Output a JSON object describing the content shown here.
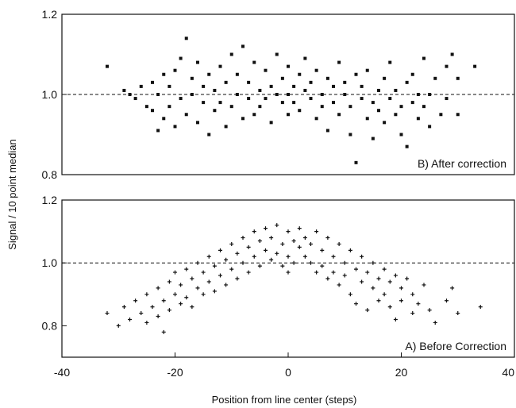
{
  "figure": {
    "ylabel": "Signal / 10 point median",
    "xlabel": "Position from line center (steps)",
    "x_ticks": [
      "-40",
      "-20",
      "0",
      "20",
      "40"
    ]
  },
  "chart_data": [
    {
      "type": "scatter",
      "panel_label": "B)  After correction",
      "marker": "square",
      "xlim": [
        -40,
        40
      ],
      "ylim": [
        0.8,
        1.2
      ],
      "y_ticks": [
        "0.8",
        "1.0",
        "1.2"
      ],
      "reference_line": {
        "y": 1.0,
        "style": "dashed"
      },
      "points": [
        [
          -32,
          1.07
        ],
        [
          -29,
          1.01
        ],
        [
          -28,
          1.0
        ],
        [
          -27,
          0.99
        ],
        [
          -26,
          1.02
        ],
        [
          -25,
          0.97
        ],
        [
          -24,
          1.03
        ],
        [
          -24,
          0.96
        ],
        [
          -23,
          0.91
        ],
        [
          -23,
          1.0
        ],
        [
          -22,
          1.05
        ],
        [
          -22,
          0.94
        ],
        [
          -21,
          0.97
        ],
        [
          -21,
          1.02
        ],
        [
          -20,
          0.92
        ],
        [
          -20,
          1.06
        ],
        [
          -19,
          0.99
        ],
        [
          -19,
          1.09
        ],
        [
          -18,
          1.14
        ],
        [
          -18,
          0.95
        ],
        [
          -17,
          1.0
        ],
        [
          -17,
          1.04
        ],
        [
          -16,
          0.93
        ],
        [
          -16,
          1.08
        ],
        [
          -15,
          0.98
        ],
        [
          -15,
          1.02
        ],
        [
          -14,
          1.05
        ],
        [
          -14,
          0.9
        ],
        [
          -13,
          1.01
        ],
        [
          -13,
          0.96
        ],
        [
          -12,
          1.07
        ],
        [
          -12,
          0.98
        ],
        [
          -11,
          1.03
        ],
        [
          -11,
          0.92
        ],
        [
          -10,
          1.1
        ],
        [
          -10,
          0.97
        ],
        [
          -9,
          1.0
        ],
        [
          -9,
          1.05
        ],
        [
          -8,
          0.94
        ],
        [
          -8,
          1.12
        ],
        [
          -7,
          0.99
        ],
        [
          -7,
          1.03
        ],
        [
          -6,
          1.08
        ],
        [
          -6,
          0.95
        ],
        [
          -5,
          1.01
        ],
        [
          -5,
          0.97
        ],
        [
          -4,
          1.06
        ],
        [
          -4,
          0.99
        ],
        [
          -3,
          1.02
        ],
        [
          -3,
          0.93
        ],
        [
          -2,
          1.1
        ],
        [
          -2,
          1.0
        ],
        [
          -1,
          0.98
        ],
        [
          -1,
          1.04
        ],
        [
          0,
          1.0
        ],
        [
          0,
          1.07
        ],
        [
          0,
          0.95
        ],
        [
          1,
          1.02
        ],
        [
          1,
          0.98
        ],
        [
          2,
          1.05
        ],
        [
          2,
          0.96
        ],
        [
          3,
          1.01
        ],
        [
          3,
          1.09
        ],
        [
          4,
          0.99
        ],
        [
          4,
          1.03
        ],
        [
          5,
          0.94
        ],
        [
          5,
          1.06
        ],
        [
          6,
          1.0
        ],
        [
          6,
          0.97
        ],
        [
          7,
          1.04
        ],
        [
          7,
          0.91
        ],
        [
          8,
          1.02
        ],
        [
          8,
          0.98
        ],
        [
          9,
          1.08
        ],
        [
          9,
          0.95
        ],
        [
          10,
          1.0
        ],
        [
          10,
          1.03
        ],
        [
          11,
          0.9
        ],
        [
          11,
          0.97
        ],
        [
          12,
          1.05
        ],
        [
          12,
          0.83
        ],
        [
          13,
          0.99
        ],
        [
          13,
          1.02
        ],
        [
          14,
          0.94
        ],
        [
          14,
          1.06
        ],
        [
          15,
          0.98
        ],
        [
          15,
          0.89
        ],
        [
          16,
          1.01
        ],
        [
          16,
          0.96
        ],
        [
          17,
          1.04
        ],
        [
          17,
          0.93
        ],
        [
          18,
          0.99
        ],
        [
          18,
          1.08
        ],
        [
          19,
          0.95
        ],
        [
          19,
          1.01
        ],
        [
          20,
          0.97
        ],
        [
          20,
          0.9
        ],
        [
          21,
          1.03
        ],
        [
          21,
          0.87
        ],
        [
          22,
          0.98
        ],
        [
          22,
          1.05
        ],
        [
          23,
          0.94
        ],
        [
          23,
          1.0
        ],
        [
          24,
          0.97
        ],
        [
          24,
          1.09
        ],
        [
          25,
          1.0
        ],
        [
          25,
          0.92
        ],
        [
          26,
          1.04
        ],
        [
          27,
          0.95
        ],
        [
          28,
          1.07
        ],
        [
          28,
          0.99
        ],
        [
          29,
          1.1
        ],
        [
          30,
          0.95
        ],
        [
          30,
          1.04
        ],
        [
          33,
          1.07
        ]
      ]
    },
    {
      "type": "scatter",
      "panel_label": "A) Before Correction",
      "marker": "plus",
      "xlim": [
        -40,
        40
      ],
      "ylim": [
        0.7,
        1.2
      ],
      "y_ticks": [
        "0.8",
        "1.0",
        "1.2"
      ],
      "reference_line": {
        "y": 1.0,
        "style": "dashed"
      },
      "points": [
        [
          -32,
          0.84
        ],
        [
          -30,
          0.8
        ],
        [
          -29,
          0.86
        ],
        [
          -28,
          0.82
        ],
        [
          -27,
          0.88
        ],
        [
          -26,
          0.84
        ],
        [
          -25,
          0.9
        ],
        [
          -25,
          0.81
        ],
        [
          -24,
          0.86
        ],
        [
          -23,
          0.92
        ],
        [
          -23,
          0.83
        ],
        [
          -22,
          0.88
        ],
        [
          -22,
          0.78
        ],
        [
          -21,
          0.94
        ],
        [
          -21,
          0.85
        ],
        [
          -20,
          0.9
        ],
        [
          -20,
          0.97
        ],
        [
          -19,
          0.87
        ],
        [
          -19,
          0.93
        ],
        [
          -18,
          0.98
        ],
        [
          -18,
          0.89
        ],
        [
          -17,
          0.95
        ],
        [
          -17,
          0.86
        ],
        [
          -16,
          1.0
        ],
        [
          -16,
          0.92
        ],
        [
          -15,
          0.97
        ],
        [
          -15,
          0.9
        ],
        [
          -14,
          1.02
        ],
        [
          -14,
          0.94
        ],
        [
          -13,
          0.99
        ],
        [
          -13,
          0.91
        ],
        [
          -12,
          1.04
        ],
        [
          -12,
          0.96
        ],
        [
          -11,
          1.01
        ],
        [
          -11,
          0.93
        ],
        [
          -10,
          1.06
        ],
        [
          -10,
          0.98
        ],
        [
          -9,
          1.03
        ],
        [
          -9,
          0.95
        ],
        [
          -8,
          1.08
        ],
        [
          -8,
          1.0
        ],
        [
          -7,
          1.05
        ],
        [
          -7,
          0.97
        ],
        [
          -6,
          1.1
        ],
        [
          -6,
          1.02
        ],
        [
          -5,
          1.07
        ],
        [
          -5,
          0.99
        ],
        [
          -4,
          1.04
        ],
        [
          -4,
          1.11
        ],
        [
          -3,
          1.01
        ],
        [
          -3,
          1.08
        ],
        [
          -2,
          1.12
        ],
        [
          -2,
          1.03
        ],
        [
          -1,
          1.06
        ],
        [
          -1,
          0.99
        ],
        [
          0,
          1.1
        ],
        [
          0,
          1.02
        ],
        [
          0,
          0.97
        ],
        [
          1,
          1.07
        ],
        [
          1,
          1.0
        ],
        [
          2,
          1.05
        ],
        [
          2,
          1.11
        ],
        [
          3,
          1.02
        ],
        [
          3,
          1.08
        ],
        [
          4,
          1.0
        ],
        [
          4,
          1.06
        ],
        [
          5,
          1.1
        ],
        [
          5,
          0.97
        ],
        [
          6,
          1.04
        ],
        [
          6,
          0.99
        ],
        [
          7,
          1.08
        ],
        [
          7,
          0.95
        ],
        [
          8,
          1.02
        ],
        [
          8,
          0.97
        ],
        [
          9,
          1.06
        ],
        [
          9,
          0.93
        ],
        [
          10,
          1.0
        ],
        [
          10,
          0.96
        ],
        [
          11,
          1.04
        ],
        [
          11,
          0.9
        ],
        [
          12,
          0.98
        ],
        [
          12,
          0.87
        ],
        [
          13,
          1.02
        ],
        [
          13,
          0.94
        ],
        [
          14,
          0.97
        ],
        [
          14,
          0.85
        ],
        [
          15,
          1.0
        ],
        [
          15,
          0.92
        ],
        [
          16,
          0.95
        ],
        [
          16,
          0.88
        ],
        [
          17,
          0.98
        ],
        [
          17,
          0.9
        ],
        [
          18,
          0.94
        ],
        [
          18,
          0.86
        ],
        [
          19,
          0.96
        ],
        [
          19,
          0.82
        ],
        [
          20,
          0.92
        ],
        [
          20,
          0.88
        ],
        [
          21,
          0.95
        ],
        [
          22,
          0.84
        ],
        [
          22,
          0.9
        ],
        [
          23,
          0.87
        ],
        [
          24,
          0.93
        ],
        [
          25,
          0.85
        ],
        [
          26,
          0.81
        ],
        [
          28,
          0.88
        ],
        [
          29,
          0.92
        ],
        [
          30,
          0.84
        ],
        [
          34,
          0.86
        ]
      ]
    }
  ]
}
